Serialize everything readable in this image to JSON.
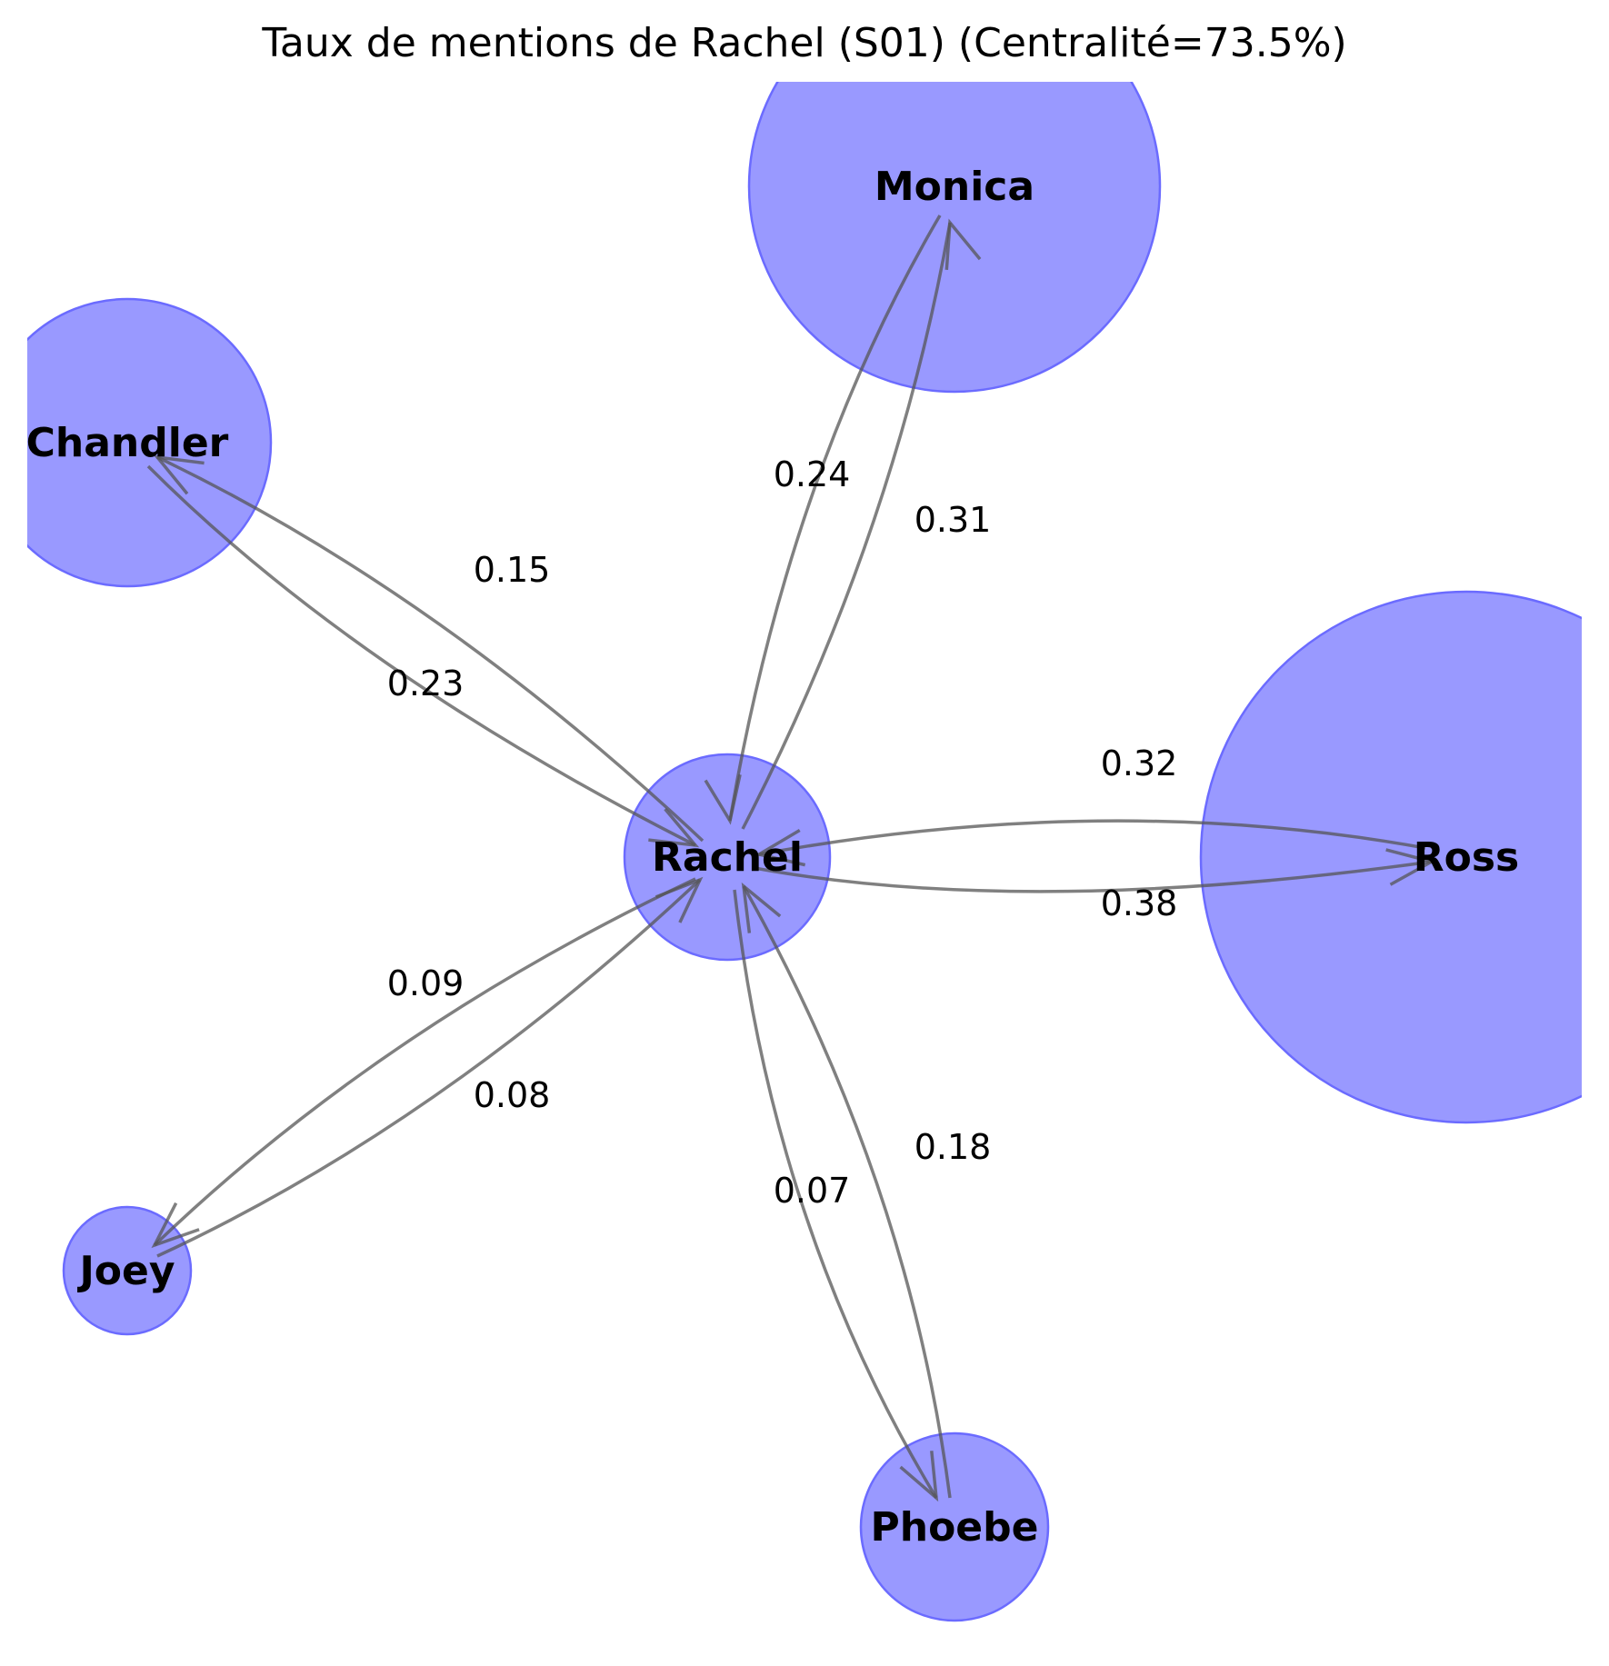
{
  "title": "Taux de mentions de Rachel (S01) (Centralité=73.5%)",
  "colors": {
    "node_fill": "#9999ff",
    "node_stroke": "#6b6bff",
    "edge": "#555555",
    "text": "#000000"
  },
  "nodes": [
    {
      "id": "rachel",
      "label": "Rachel"
    },
    {
      "id": "monica",
      "label": "Monica"
    },
    {
      "id": "chandler",
      "label": "Chandler"
    },
    {
      "id": "ross",
      "label": "Ross"
    },
    {
      "id": "joey",
      "label": "Joey"
    },
    {
      "id": "phoebe",
      "label": "Phoebe"
    }
  ],
  "edges": [
    {
      "id": "rachel-monica",
      "from": "rachel",
      "to": "monica",
      "weight": "0.31"
    },
    {
      "id": "monica-rachel",
      "from": "monica",
      "to": "rachel",
      "weight": "0.24"
    },
    {
      "id": "rachel-chandler",
      "from": "rachel",
      "to": "chandler",
      "weight": "0.15"
    },
    {
      "id": "chandler-rachel",
      "from": "chandler",
      "to": "rachel",
      "weight": "0.23"
    },
    {
      "id": "rachel-ross",
      "from": "rachel",
      "to": "ross",
      "weight": "0.38"
    },
    {
      "id": "ross-rachel",
      "from": "ross",
      "to": "rachel",
      "weight": "0.32"
    },
    {
      "id": "rachel-joey",
      "from": "rachel",
      "to": "joey",
      "weight": "0.09"
    },
    {
      "id": "joey-rachel",
      "from": "joey",
      "to": "rachel",
      "weight": "0.08"
    },
    {
      "id": "rachel-phoebe",
      "from": "rachel",
      "to": "phoebe",
      "weight": "0.07"
    },
    {
      "id": "phoebe-rachel",
      "from": "phoebe",
      "to": "rachel",
      "weight": "0.18"
    }
  ]
}
